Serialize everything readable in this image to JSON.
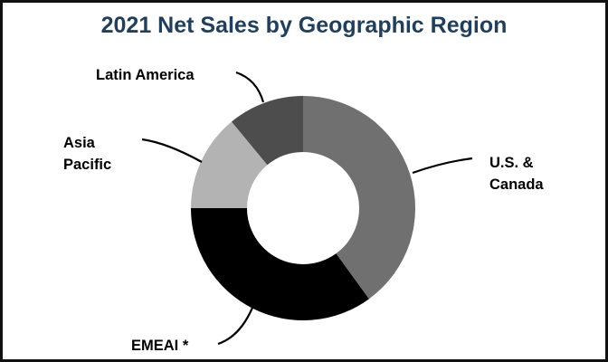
{
  "chart_data": {
    "type": "pie",
    "subtype": "donut",
    "title": "2021 Net Sales by Geographic Region",
    "categories": [
      "U.S. & Canada",
      "EMEAI *",
      "Asia Pacific",
      "Latin America"
    ],
    "values": [
      40,
      35,
      14,
      11
    ],
    "unit": "% of net sales (estimated from slice angles)",
    "colors": [
      "#707070",
      "#000000",
      "#b3b3b3",
      "#4d4d4d"
    ],
    "start_angle": "12 o'clock, clockwise",
    "legend": "none (leader-line labels)"
  },
  "labels": {
    "us_canada": "U.S. &\nCanada",
    "emeai": "EMEAI *",
    "asia_pacific": "Asia\nPacific",
    "latin_america": "Latin America"
  }
}
